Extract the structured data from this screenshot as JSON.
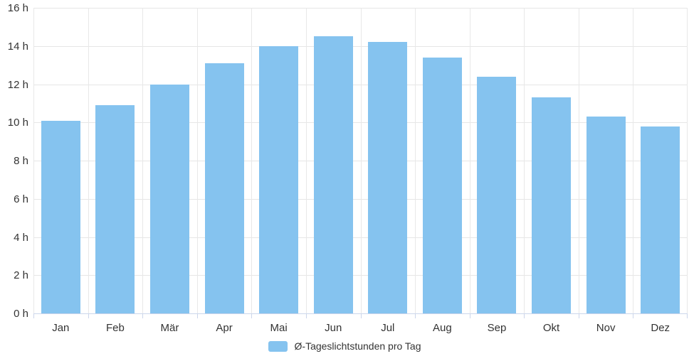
{
  "chart_data": {
    "type": "bar",
    "title": "",
    "categories": [
      "Jan",
      "Feb",
      "Mär",
      "Apr",
      "Mai",
      "Jun",
      "Jul",
      "Aug",
      "Sep",
      "Okt",
      "Nov",
      "Dez"
    ],
    "values": [
      10.1,
      10.9,
      12.0,
      13.1,
      14.0,
      14.5,
      14.2,
      13.4,
      12.4,
      11.3,
      10.3,
      9.8
    ],
    "series_name": "Ø-Tageslichtstunden pro Tag",
    "unit": "h",
    "xlabel": "",
    "ylabel": "",
    "ylim": [
      0,
      16
    ],
    "ytick_step": 2,
    "ytick_labels": [
      "0 h",
      "2 h",
      "4 h",
      "6 h",
      "8 h",
      "10 h",
      "12 h",
      "14 h",
      "16 h"
    ],
    "grid": "both",
    "legend_position": "bottom-center",
    "colors": {
      "bar": "#85C3EF",
      "grid_h": "#E6E6E6",
      "grid_v": "#E8E8E8",
      "axis": "#CCD6EB",
      "label": "#333333",
      "background": "#FFFFFF"
    }
  }
}
